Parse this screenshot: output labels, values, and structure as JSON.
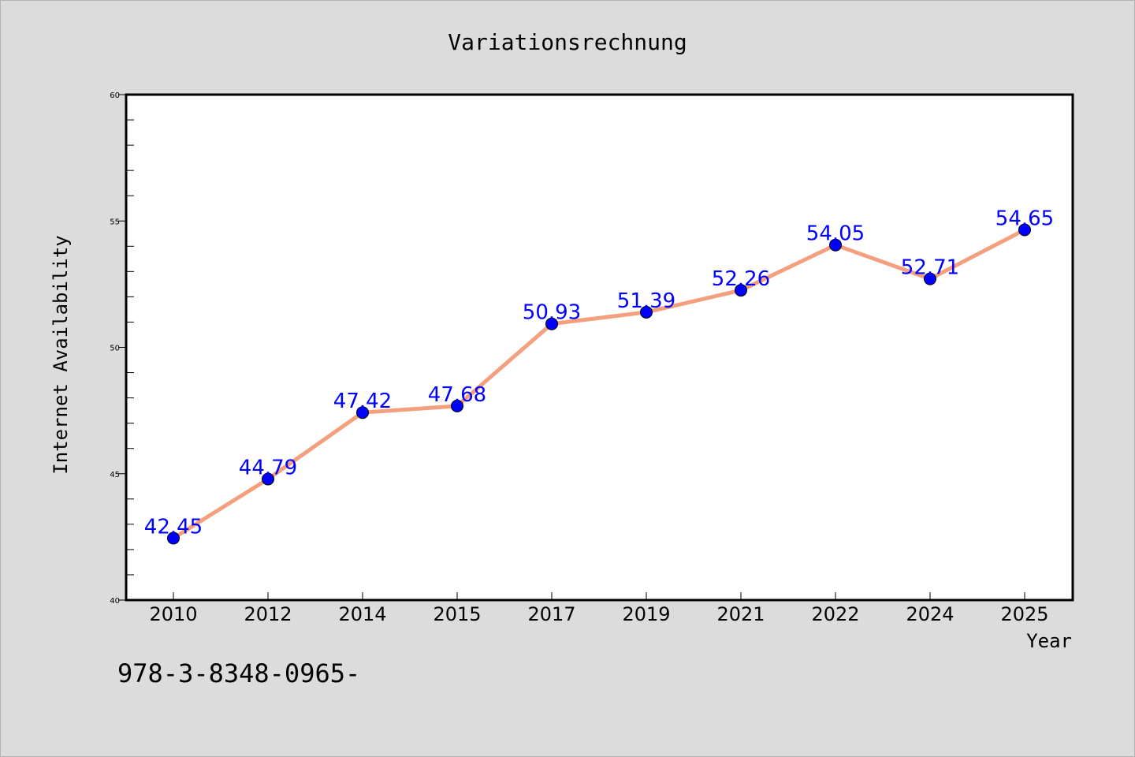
{
  "chart_data": {
    "type": "line",
    "title": "Variationsrechnung",
    "xlabel": "Year",
    "ylabel": "Internet Availability",
    "categories": [
      "2010",
      "2012",
      "2014",
      "2015",
      "2017",
      "2019",
      "2021",
      "2022",
      "2024",
      "2025"
    ],
    "values": [
      42.45,
      44.79,
      47.42,
      47.68,
      50.93,
      51.39,
      52.26,
      54.05,
      52.71,
      54.65
    ],
    "data_labels": [
      "42.45",
      "44.79",
      "47.42",
      "47.68",
      "50.93",
      "51.39",
      "52.26",
      "54.05",
      "52.71",
      "54.65"
    ],
    "ylim": [
      40,
      60
    ],
    "yticks": [
      "40",
      "45",
      "50",
      "55",
      "60"
    ],
    "grid": false,
    "colors": {
      "line": "#f4a07e",
      "marker": "#0000ff",
      "label": "#0000ff",
      "background": "#dcdcdc",
      "plot_area": "#ffffff"
    }
  },
  "footer_text": "978-3-8348-0965-"
}
